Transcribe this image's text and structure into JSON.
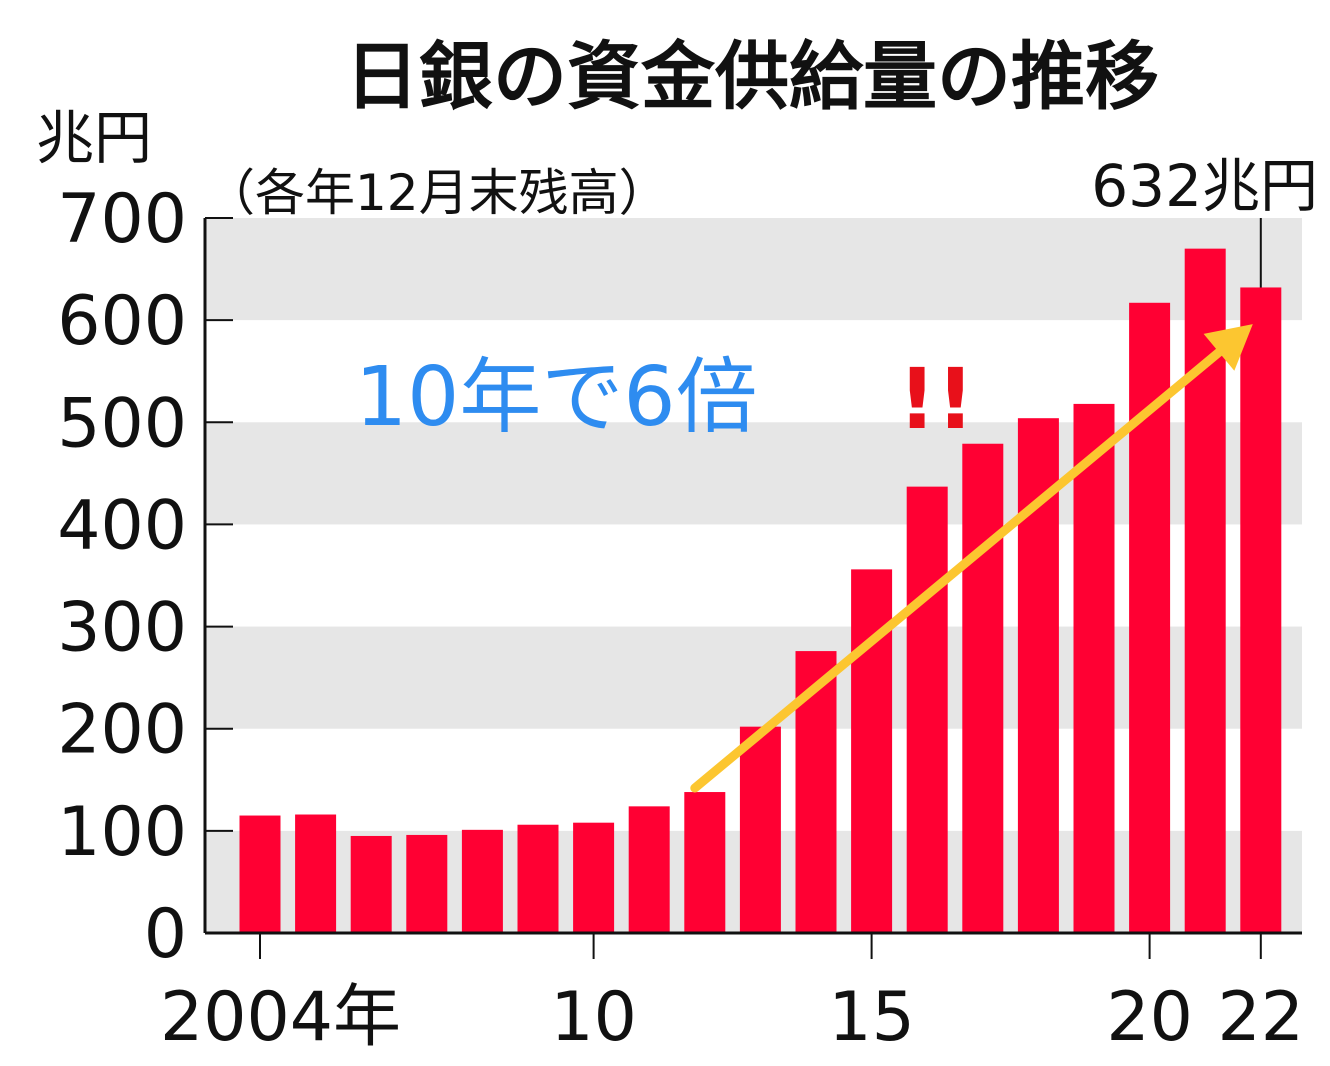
{
  "chart_data": {
    "type": "bar",
    "title": "日銀の資金供給量の推移",
    "subtitle": "（各年12月末残高）",
    "ylabel": "兆円",
    "ylim": [
      0,
      700
    ],
    "yticks": [
      "0",
      "100",
      "200",
      "300",
      "400",
      "500",
      "600",
      "700"
    ],
    "grid": "alternating horizontal bands",
    "x": [
      2004,
      2005,
      2006,
      2007,
      2008,
      2009,
      2010,
      2011,
      2012,
      2013,
      2014,
      2015,
      2016,
      2017,
      2018,
      2019,
      2020,
      2021,
      2022
    ],
    "values": [
      115,
      116,
      95,
      96,
      101,
      106,
      108,
      124,
      138,
      202,
      276,
      356,
      437,
      479,
      504,
      518,
      617,
      670,
      632
    ],
    "xticks": [
      {
        "x": 2004,
        "label": "2004年"
      },
      {
        "x": 2010,
        "label": "10"
      },
      {
        "x": 2015,
        "label": "15"
      },
      {
        "x": 2020,
        "label": "20"
      },
      {
        "x": 2022,
        "label": "22"
      }
    ],
    "annotations": {
      "last_value": "632兆円",
      "trend_text": "10年で6倍",
      "exclaim": "!!",
      "arrow_from": {
        "x": 2012,
        "y": 138
      },
      "arrow_to": {
        "x": 2022,
        "y": 600
      }
    },
    "colors": {
      "bar": "#ff0033",
      "band": "#e6e6e6",
      "arrow": "#fcc630",
      "trend_text": "#2e8cf0",
      "exclaim": "#e8101a",
      "text": "#111111"
    }
  }
}
